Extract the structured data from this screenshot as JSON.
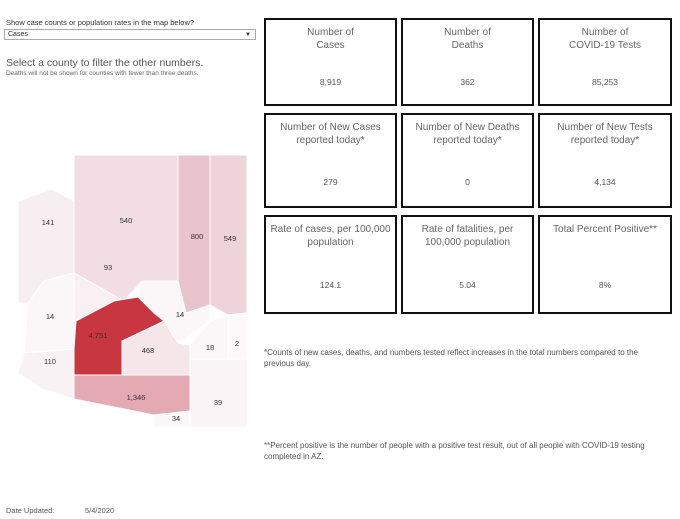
{
  "filter": {
    "label": "Show case counts or population rates in the map below?",
    "selected": "Cases"
  },
  "prompt": "Select a county to filter the other numbers.",
  "note": "Deaths will not be shown for counties with fewer than three deaths.",
  "tiles": [
    {
      "title": "Number of\nCases",
      "value": "8,919"
    },
    {
      "title": "Number of\nDeaths",
      "value": "362"
    },
    {
      "title": "Number of\nCOVID-19 Tests",
      "value": "85,253"
    },
    {
      "title": "Number of New Cases\nreported today*",
      "value": "279"
    },
    {
      "title": "Number of New Deaths\nreported today*",
      "value": "0"
    },
    {
      "title": "Number of New Tests\nreported today*",
      "value": "4,134"
    },
    {
      "title": "Rate of cases, per 100,000\npopulation",
      "value": "124.1"
    },
    {
      "title": "Rate of fatalities, per\n100,000 population",
      "value": "5.04"
    },
    {
      "title": "Total Percent Positive**",
      "value": "8%"
    }
  ],
  "footnote1": "*Counts of new cases, deaths, and numbers tested reflect increases in the total numbers compared to the previous day.",
  "footnote2": "**Percent positive is the number of people with a positive test result, out of all people with COVID-19 testing completed in AZ.",
  "date_label": "Date Updated:",
  "date_value": "5/4/2020",
  "map": {
    "counties": [
      {
        "value": "141",
        "color": "#f7eef1"
      },
      {
        "value": "540",
        "color": "#f1dde3"
      },
      {
        "value": "800",
        "color": "#e9c4ce"
      },
      {
        "value": "549",
        "color": "#eed3da"
      },
      {
        "value": "93",
        "color": "#f8f0f3"
      },
      {
        "value": "14",
        "color": "#fbf6f8"
      },
      {
        "value": "14",
        "color": "#fbf6f8"
      },
      {
        "value": "4,751",
        "color": "#c8363f"
      },
      {
        "value": "468",
        "color": "#f5e6ea"
      },
      {
        "value": "110",
        "color": "#f9f2f4"
      },
      {
        "value": "18",
        "color": "#fbf6f8"
      },
      {
        "value": "2",
        "color": "#fcf9fa"
      },
      {
        "value": "1,346",
        "color": "#e3aab4"
      },
      {
        "value": "34",
        "color": "#fbf6f8"
      },
      {
        "value": "39",
        "color": "#fbf5f7"
      }
    ]
  }
}
